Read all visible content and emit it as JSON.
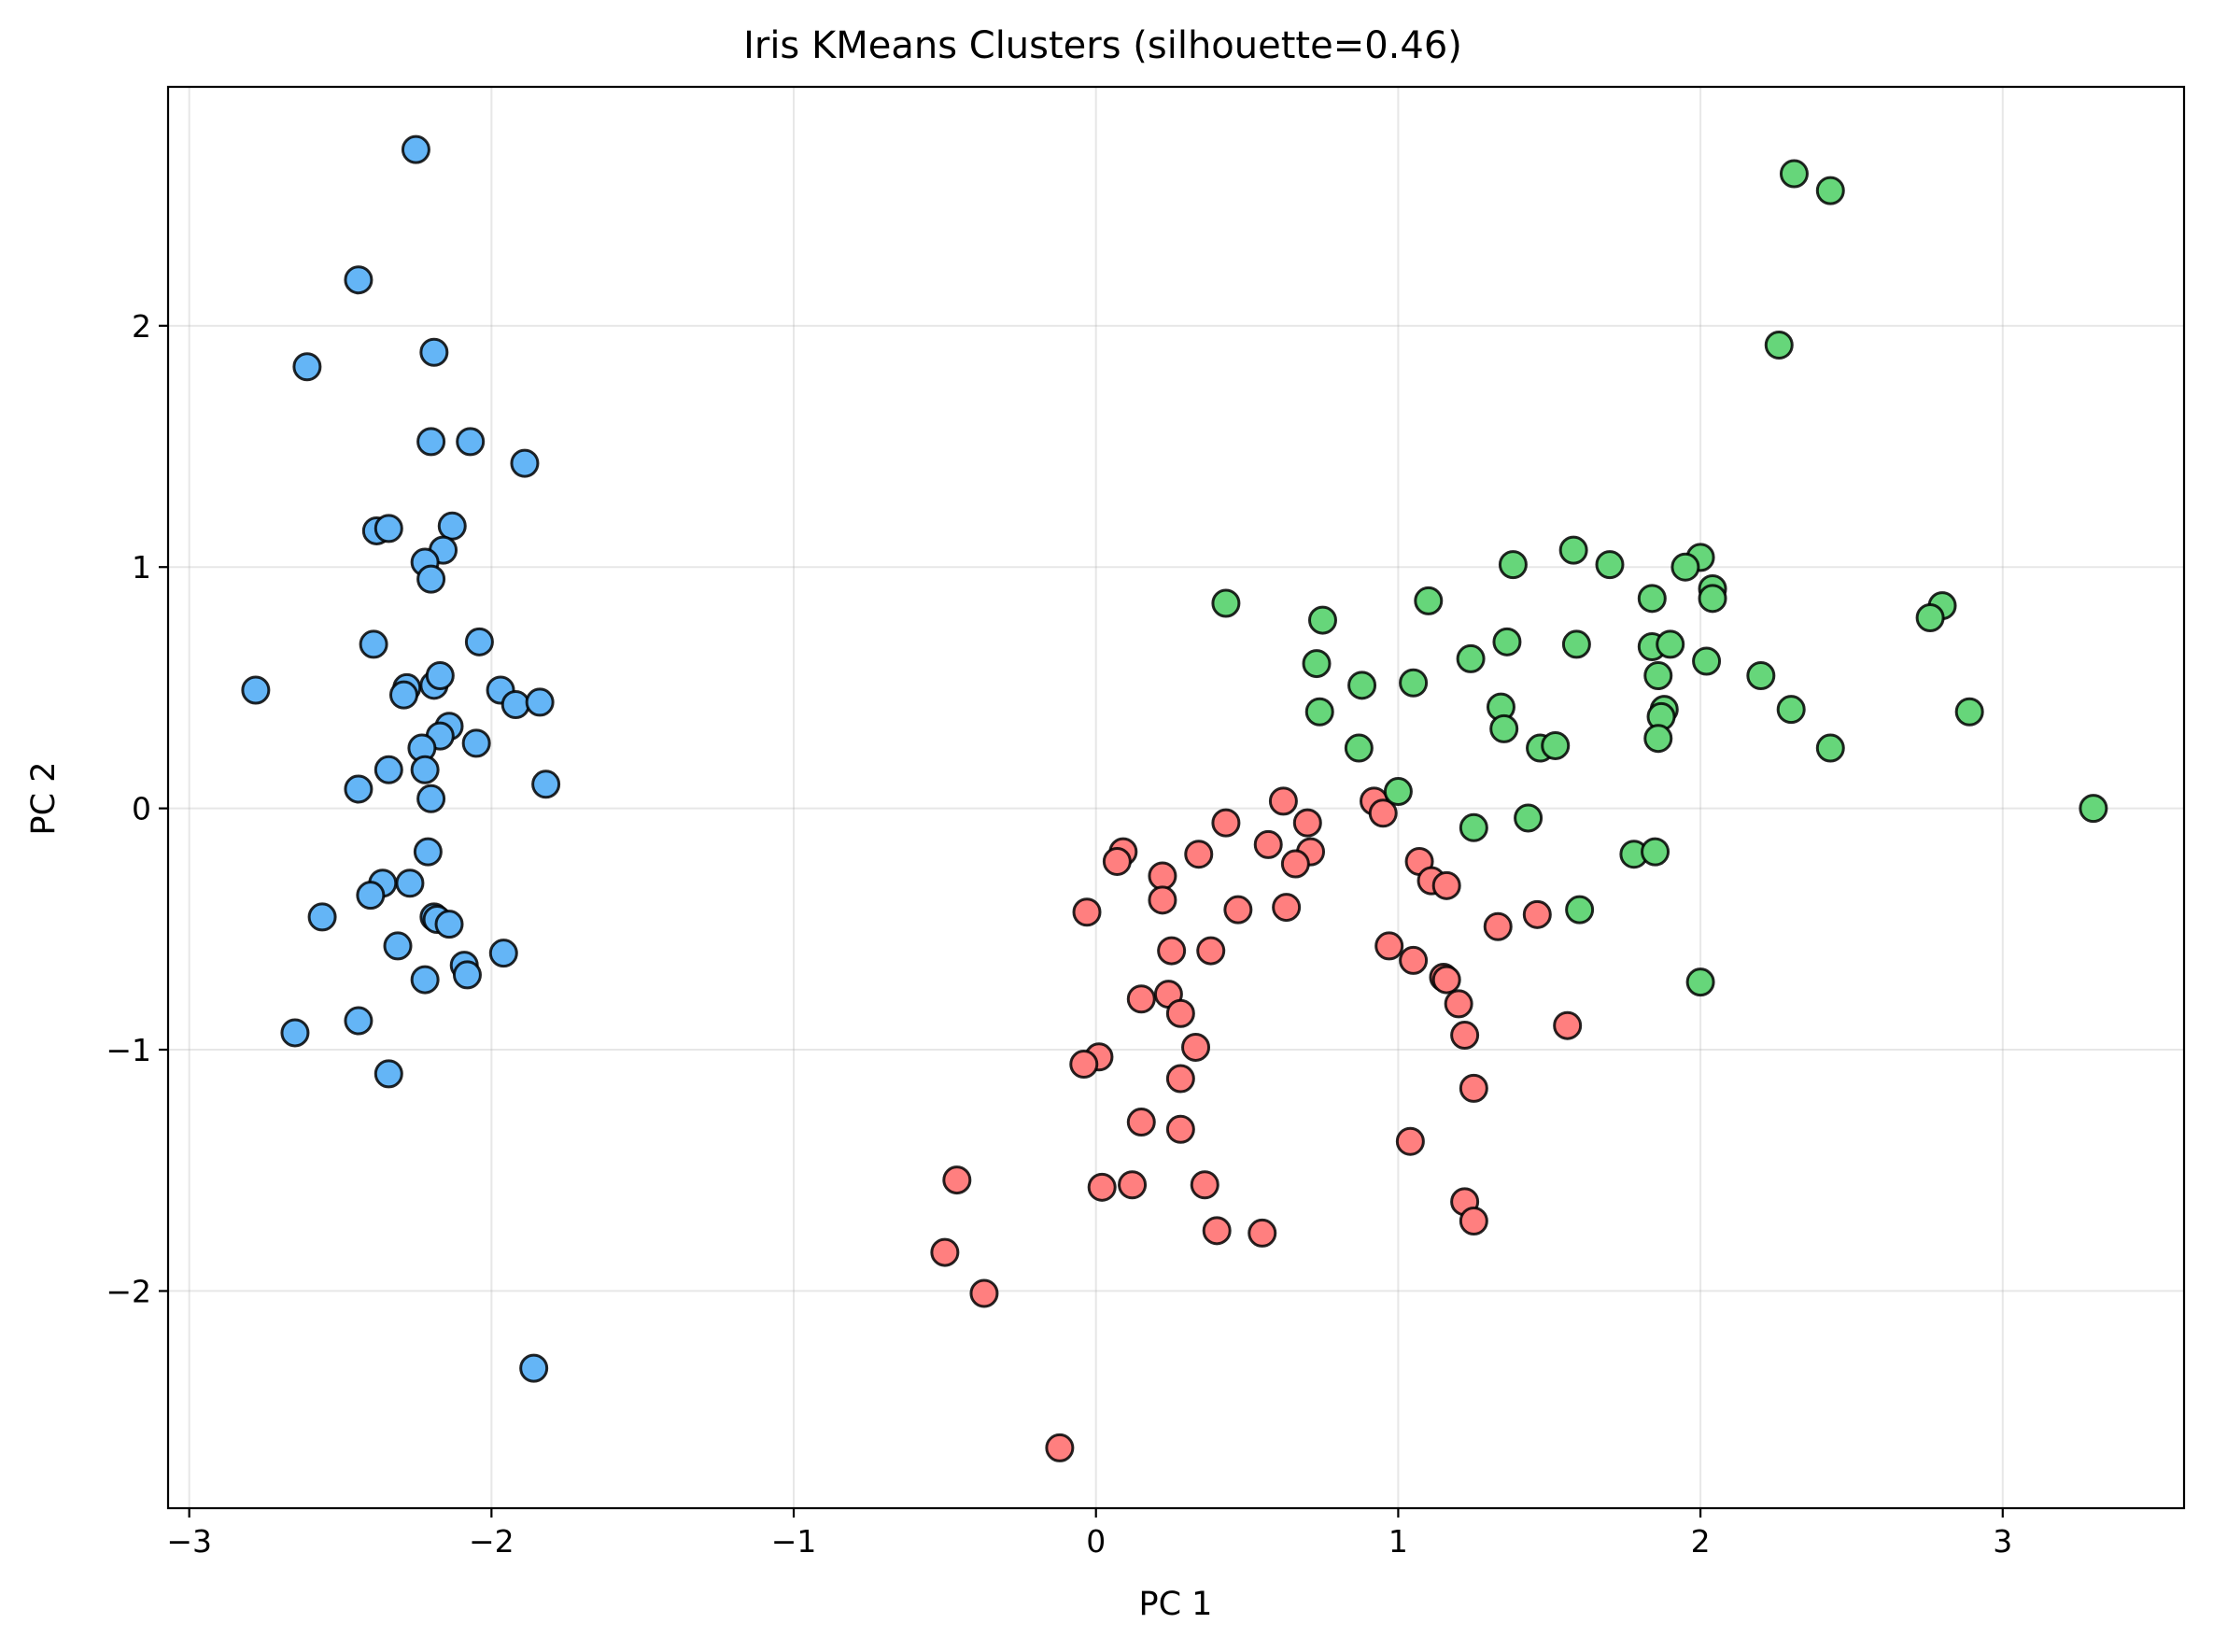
{
  "chart_data": {
    "type": "scatter",
    "title": "Iris KMeans Clusters (silhouette=0.46)",
    "xlabel": "PC 1",
    "ylabel": "PC 2",
    "xlim": [
      -3.07,
      3.6
    ],
    "ylim": [
      -2.9,
      2.99
    ],
    "xticks": [
      -3,
      -2,
      -1,
      0,
      1,
      2,
      3
    ],
    "yticks": [
      -2,
      -1,
      0,
      1,
      2
    ],
    "xtick_labels": [
      "−3",
      "−2",
      "−1",
      "0",
      "1",
      "2",
      "3"
    ],
    "ytick_labels": [
      "−2",
      "−1",
      "0",
      "1",
      "2"
    ],
    "grid": true,
    "legend": "none",
    "series": [
      {
        "color": "#64b5f6",
        "points": [
          [
            -2.25,
            2.73
          ],
          [
            -2.44,
            2.19
          ],
          [
            -2.61,
            1.83
          ],
          [
            -2.19,
            1.89
          ],
          [
            -2.2,
            1.52
          ],
          [
            -2.07,
            1.52
          ],
          [
            -1.89,
            1.43
          ],
          [
            -2.38,
            1.15
          ],
          [
            -2.34,
            1.16
          ],
          [
            -2.13,
            1.17
          ],
          [
            -2.16,
            1.07
          ],
          [
            -2.22,
            1.02
          ],
          [
            -2.2,
            0.95
          ],
          [
            -2.39,
            0.68
          ],
          [
            -2.04,
            0.69
          ],
          [
            -2.78,
            0.49
          ],
          [
            -2.28,
            0.5
          ],
          [
            -2.29,
            0.47
          ],
          [
            -2.19,
            0.51
          ],
          [
            -2.17,
            0.55
          ],
          [
            -1.97,
            0.49
          ],
          [
            -1.92,
            0.43
          ],
          [
            -1.84,
            0.44
          ],
          [
            -2.14,
            0.34
          ],
          [
            -2.17,
            0.3
          ],
          [
            -2.23,
            0.25
          ],
          [
            -2.05,
            0.27
          ],
          [
            -2.22,
            0.16
          ],
          [
            -2.34,
            0.16
          ],
          [
            -2.44,
            0.08
          ],
          [
            -2.2,
            0.04
          ],
          [
            -1.82,
            0.1
          ],
          [
            -2.21,
            -0.18
          ],
          [
            -2.27,
            -0.31
          ],
          [
            -2.36,
            -0.31
          ],
          [
            -2.4,
            -0.36
          ],
          [
            -2.56,
            -0.45
          ],
          [
            -2.19,
            -0.45
          ],
          [
            -2.18,
            -0.46
          ],
          [
            -2.14,
            -0.48
          ],
          [
            -1.96,
            -0.6
          ],
          [
            -2.31,
            -0.57
          ],
          [
            -2.09,
            -0.65
          ],
          [
            -2.08,
            -0.69
          ],
          [
            -2.22,
            -0.71
          ],
          [
            -2.44,
            -0.88
          ],
          [
            -2.65,
            -0.93
          ],
          [
            -2.34,
            -1.1
          ],
          [
            -1.86,
            -2.32
          ]
        ]
      },
      {
        "color": "#ff7f7f",
        "points": [
          [
            0.62,
            0.03
          ],
          [
            0.43,
            -0.06
          ],
          [
            0.7,
            -0.06
          ],
          [
            0.92,
            0.03
          ],
          [
            0.95,
            -0.02
          ],
          [
            0.71,
            -0.18
          ],
          [
            0.34,
            -0.19
          ],
          [
            0.57,
            -0.15
          ],
          [
            0.09,
            -0.18
          ],
          [
            0.07,
            -0.22
          ],
          [
            0.66,
            -0.23
          ],
          [
            0.22,
            -0.28
          ],
          [
            0.22,
            -0.38
          ],
          [
            1.07,
            -0.22
          ],
          [
            1.11,
            -0.3
          ],
          [
            1.16,
            -0.32
          ],
          [
            -0.03,
            -0.43
          ],
          [
            0.47,
            -0.42
          ],
          [
            0.63,
            -0.41
          ],
          [
            1.46,
            -0.44
          ],
          [
            1.33,
            -0.49
          ],
          [
            0.97,
            -0.57
          ],
          [
            0.25,
            -0.59
          ],
          [
            0.38,
            -0.59
          ],
          [
            1.05,
            -0.63
          ],
          [
            1.15,
            -0.7
          ],
          [
            1.16,
            -0.71
          ],
          [
            0.15,
            -0.79
          ],
          [
            0.24,
            -0.77
          ],
          [
            0.28,
            -0.85
          ],
          [
            1.2,
            -0.81
          ],
          [
            1.22,
            -0.94
          ],
          [
            1.56,
            -0.9
          ],
          [
            0.33,
            -0.99
          ],
          [
            0.01,
            -1.03
          ],
          [
            -0.04,
            -1.06
          ],
          [
            0.28,
            -1.12
          ],
          [
            1.25,
            -1.16
          ],
          [
            0.15,
            -1.3
          ],
          [
            0.28,
            -1.33
          ],
          [
            1.04,
            -1.38
          ],
          [
            -0.46,
            -1.54
          ],
          [
            0.02,
            -1.57
          ],
          [
            0.12,
            -1.56
          ],
          [
            0.36,
            -1.56
          ],
          [
            1.22,
            -1.63
          ],
          [
            1.25,
            -1.71
          ],
          [
            0.4,
            -1.75
          ],
          [
            0.55,
            -1.76
          ],
          [
            -0.5,
            -1.84
          ],
          [
            -0.37,
            -2.01
          ],
          [
            -0.12,
            -2.65
          ]
        ]
      },
      {
        "color": "#66d67a",
        "points": [
          [
            2.31,
            2.63
          ],
          [
            2.43,
            2.56
          ],
          [
            2.26,
            1.92
          ],
          [
            1.58,
            1.07
          ],
          [
            1.38,
            1.01
          ],
          [
            1.7,
            1.01
          ],
          [
            2.0,
            1.04
          ],
          [
            1.95,
            1.0
          ],
          [
            2.04,
            0.91
          ],
          [
            2.04,
            0.87
          ],
          [
            1.1,
            0.86
          ],
          [
            0.43,
            0.85
          ],
          [
            1.84,
            0.87
          ],
          [
            2.8,
            0.84
          ],
          [
            2.76,
            0.79
          ],
          [
            0.75,
            0.78
          ],
          [
            1.36,
            0.69
          ],
          [
            1.59,
            0.68
          ],
          [
            1.84,
            0.67
          ],
          [
            1.9,
            0.68
          ],
          [
            1.24,
            0.62
          ],
          [
            0.73,
            0.6
          ],
          [
            2.02,
            0.61
          ],
          [
            1.86,
            0.55
          ],
          [
            2.2,
            0.55
          ],
          [
            0.88,
            0.51
          ],
          [
            1.05,
            0.52
          ],
          [
            0.74,
            0.4
          ],
          [
            1.34,
            0.42
          ],
          [
            1.88,
            0.41
          ],
          [
            1.87,
            0.38
          ],
          [
            2.3,
            0.41
          ],
          [
            2.89,
            0.4
          ],
          [
            1.35,
            0.33
          ],
          [
            1.86,
            0.29
          ],
          [
            1.47,
            0.25
          ],
          [
            1.52,
            0.26
          ],
          [
            0.87,
            0.25
          ],
          [
            2.43,
            0.25
          ],
          [
            1.0,
            0.07
          ],
          [
            1.25,
            -0.08
          ],
          [
            1.43,
            -0.04
          ],
          [
            3.3,
            0.0
          ],
          [
            1.78,
            -0.19
          ],
          [
            1.85,
            -0.18
          ],
          [
            1.6,
            -0.42
          ],
          [
            2.0,
            -0.72
          ]
        ]
      }
    ]
  }
}
